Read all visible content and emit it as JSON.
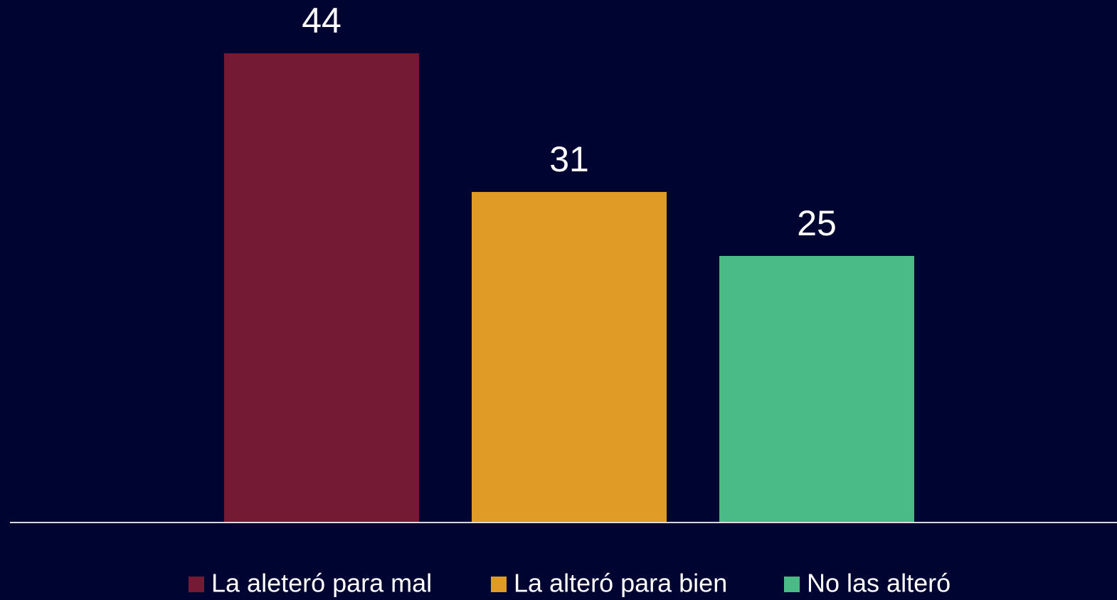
{
  "chart_data": {
    "type": "bar",
    "categories": [
      null
    ],
    "series": [
      {
        "name": "La aleteró para mal",
        "color": "#741a35",
        "values": [
          44
        ]
      },
      {
        "name": "La alteró para bien",
        "color": "#e09a26",
        "values": [
          31
        ]
      },
      {
        "name": "No las alteró",
        "color": "#4aba87",
        "values": [
          25
        ]
      }
    ],
    "ylim": [
      0,
      49
    ],
    "legend": "bottom"
  }
}
